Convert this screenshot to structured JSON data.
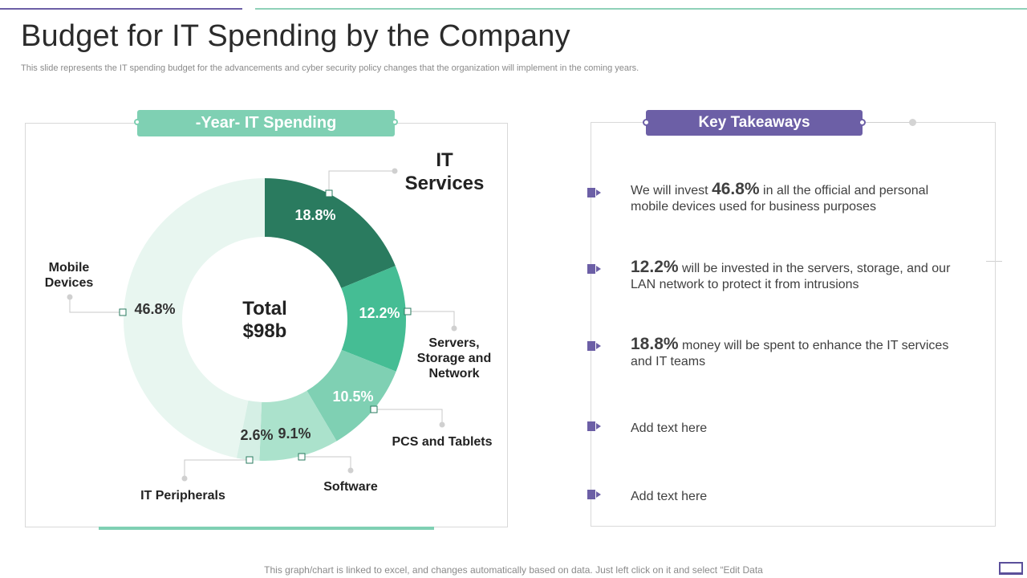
{
  "page": {
    "title": "Budget for IT Spending by the Company",
    "subtitle": "This slide represents the IT spending budget for the advancements and cyber security policy changes that the organization will implement in the coming years.",
    "footer": "This graph/chart is linked to excel, and changes automatically based on data. Just left click on it and select “Edit Data"
  },
  "chart_panel": {
    "header": "-Year- IT Spending",
    "center_label_line1": "Total",
    "center_label_line2": "$98b"
  },
  "chart_data": {
    "type": "pie",
    "title": "-Year- IT Spending",
    "subtype": "donut",
    "center_text": "Total $98b",
    "categories": [
      "IT Services",
      "Servers, Storage and Network",
      "PCS and Tablets",
      "Software",
      "IT Peripherals",
      "Mobile Devices"
    ],
    "values": [
      18.8,
      12.2,
      10.5,
      9.1,
      2.6,
      46.8
    ],
    "value_labels": [
      "18.8%",
      "12.2%",
      "10.5%",
      "9.1%",
      "2.6%",
      "46.8%"
    ],
    "label_lines": [
      [
        "IT",
        "Services"
      ],
      [
        "Servers,",
        "Storage and",
        "Network"
      ],
      [
        "PCS and Tablets"
      ],
      [
        "Software"
      ],
      [
        "IT Peripherals"
      ],
      [
        "Mobile",
        "Devices"
      ]
    ],
    "colors": [
      "#2a7b5f",
      "#45bd94",
      "#7fd0b3",
      "#abe2cc",
      "#d5efe5",
      "#e8f6f0"
    ],
    "label_colors": [
      "#ffffff",
      "#ffffff",
      "#ffffff",
      "#333333",
      "#333333",
      "#333333"
    ],
    "unit": "%"
  },
  "takeaways": {
    "header": "Key Takeaways",
    "items": [
      {
        "prefix": "We will invest ",
        "value": "46.8%",
        "suffix": " in all the official and personal mobile devices used for business purposes"
      },
      {
        "prefix": "",
        "value": "12.2%",
        "suffix": " will be invested in the servers, storage, and our LAN network to protect it from intrusions"
      },
      {
        "prefix": "",
        "value": "18.8%",
        "suffix": " money will be spent to enhance the IT services and IT teams"
      },
      {
        "prefix": "",
        "value": "",
        "suffix": "Add text here"
      },
      {
        "prefix": "",
        "value": "",
        "suffix": "Add text here"
      }
    ]
  },
  "colors": {
    "accent_purple": "#6c5fa6",
    "accent_green": "#7fd0b3"
  }
}
